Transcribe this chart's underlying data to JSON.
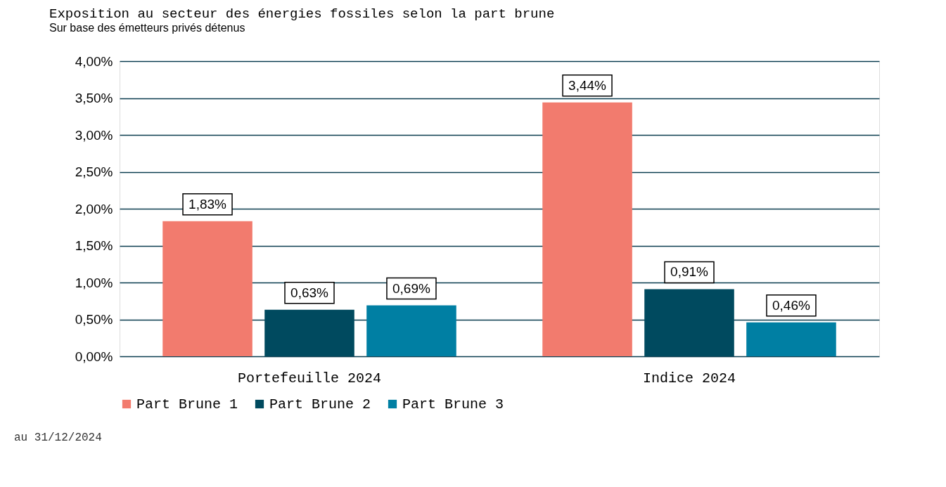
{
  "chart_data": {
    "type": "bar",
    "title": "Exposition au secteur des énergies fossiles selon la part brune",
    "subtitle": "Sur base des émetteurs privés détenus",
    "categories": [
      "Portefeuille 2024",
      "Indice 2024"
    ],
    "series": [
      {
        "name": "Part Brune 1",
        "color": "#f27b6e",
        "values": [
          1.83,
          3.44
        ],
        "value_labels": [
          "1,83%",
          "3,44%"
        ]
      },
      {
        "name": "Part Brune 2",
        "color": "#004a5f",
        "values": [
          0.63,
          0.91
        ],
        "value_labels": [
          "0,63%",
          "0,91%"
        ]
      },
      {
        "name": "Part Brune 3",
        "color": "#007fa3",
        "values": [
          0.69,
          0.46
        ],
        "value_labels": [
          "0,69%",
          "0,46%"
        ]
      }
    ],
    "ylim": [
      0,
      4
    ],
    "yticks": [
      {
        "value": 0,
        "label": "0,00%"
      },
      {
        "value": 0.5,
        "label": "0,50%"
      },
      {
        "value": 1,
        "label": "1,00%"
      },
      {
        "value": 1.5,
        "label": "1,50%"
      },
      {
        "value": 2,
        "label": "2,00%"
      },
      {
        "value": 2.5,
        "label": "2,50%"
      },
      {
        "value": 3,
        "label": "3,00%"
      },
      {
        "value": 3.5,
        "label": "3,50%"
      },
      {
        "value": 4,
        "label": "4,00%"
      }
    ],
    "grid": "y",
    "legend": "bottom",
    "annotations": [
      "au 31/12/2024"
    ]
  }
}
